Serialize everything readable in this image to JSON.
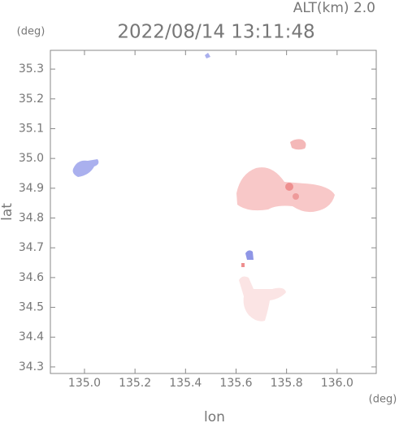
{
  "chart_data": {
    "type": "map",
    "title": "2022/08/14 13:11:48",
    "subtitle": "ALT(km) 2.0",
    "x_label": "lon",
    "y_label": "lat",
    "x_unit": "(deg)",
    "y_unit": "(deg)",
    "xlim": [
      134.865,
      136.155
    ],
    "ylim": [
      34.278,
      35.363
    ],
    "xticks": [
      {
        "value": 135.0,
        "label": "135.0"
      },
      135.2,
      135.4,
      135.6,
      135.8,
      {
        "value": 136.0,
        "label": "136.0"
      }
    ],
    "yticks": [
      34.3,
      34.4,
      34.5,
      34.6,
      34.7,
      34.8,
      34.9,
      {
        "value": 35.0,
        "label": "35.0"
      },
      35.1,
      35.2,
      35.3
    ]
  }
}
